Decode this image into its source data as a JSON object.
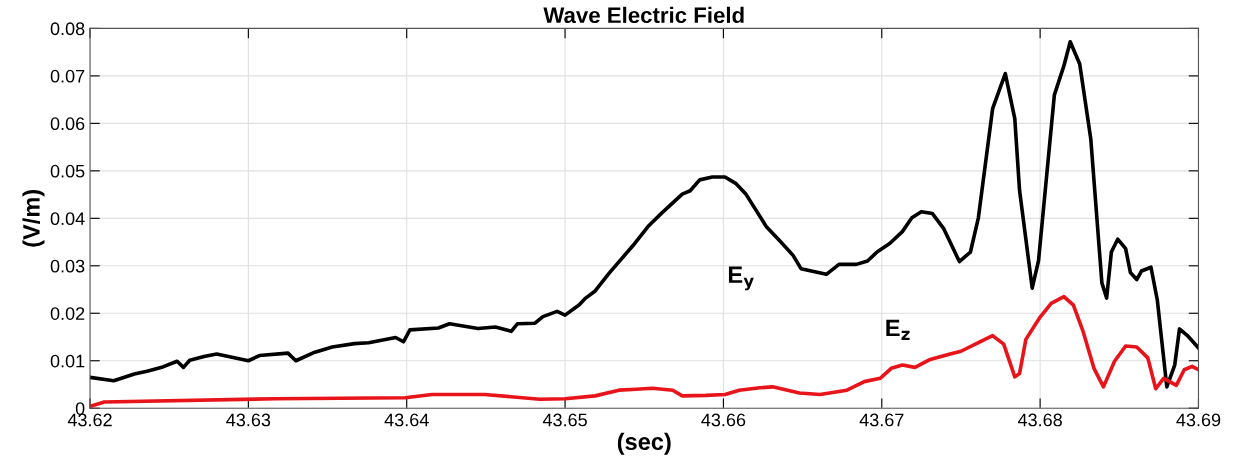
{
  "chart_data": {
    "type": "line",
    "title": "Wave Electric Field",
    "xlabel": "(sec)",
    "ylabel": "(V/m)",
    "xlim": [
      43.62,
      43.69
    ],
    "ylim": [
      0,
      0.08
    ],
    "xticks": [
      43.62,
      43.63,
      43.64,
      43.65,
      43.66,
      43.67,
      43.68,
      43.69
    ],
    "yticks": [
      0,
      0.01,
      0.02,
      0.03,
      0.04,
      0.05,
      0.06,
      0.07,
      0.08
    ],
    "grid": true,
    "legend": false,
    "marker": "none",
    "line_style": "solid",
    "series": [
      {
        "name": "E$_{y}$",
        "color": "#000000",
        "x": [
          43.62,
          43.6215,
          43.6228,
          43.6236,
          43.6246,
          43.6255,
          43.6259,
          43.6263,
          43.6272,
          43.628,
          43.63,
          43.6307,
          43.6325,
          43.633,
          43.6342,
          43.6353,
          43.6367,
          43.6376,
          43.6393,
          43.6398,
          43.6402,
          43.642,
          43.6427,
          43.6445,
          43.6456,
          43.6466,
          43.647,
          43.6481,
          43.6486,
          43.6495,
          43.65,
          43.6509,
          43.6513,
          43.6519,
          43.6528,
          43.6544,
          43.6553,
          43.6561,
          43.6574,
          43.6579,
          43.6585,
          43.6593,
          43.6601,
          43.6608,
          43.6614,
          43.6627,
          43.6636,
          43.6644,
          43.6649,
          43.6657,
          43.6665,
          43.6673,
          43.6684,
          43.6691,
          43.6697,
          43.6705,
          43.6713,
          43.6719,
          43.6725,
          43.6732,
          43.6739,
          43.6749,
          43.6756,
          43.6761,
          43.677,
          43.6778,
          43.6784,
          43.6787,
          43.6795,
          43.6799,
          43.6809,
          43.6815,
          43.6819,
          43.6825,
          43.6832,
          43.6839,
          43.6842,
          43.6845,
          43.6849,
          43.6854,
          43.6857,
          43.6861,
          43.6864,
          43.687,
          43.6874,
          43.688,
          43.6885,
          43.6888,
          43.6893,
          43.69
        ],
        "values": [
          0.0065,
          0.0058,
          0.0072,
          0.0078,
          0.0087,
          0.0099,
          0.0086,
          0.0101,
          0.0109,
          0.0114,
          0.01,
          0.0111,
          0.0116,
          0.01,
          0.0118,
          0.0129,
          0.0136,
          0.0138,
          0.0149,
          0.014,
          0.0165,
          0.0169,
          0.0178,
          0.0168,
          0.0171,
          0.0162,
          0.0178,
          0.0179,
          0.0193,
          0.0204,
          0.0196,
          0.0218,
          0.0232,
          0.0247,
          0.0285,
          0.0347,
          0.0385,
          0.0411,
          0.0451,
          0.0458,
          0.0481,
          0.0487,
          0.0487,
          0.0473,
          0.0452,
          0.0383,
          0.0351,
          0.0322,
          0.0294,
          0.0288,
          0.0282,
          0.0303,
          0.0303,
          0.031,
          0.0329,
          0.0347,
          0.0372,
          0.0401,
          0.0414,
          0.041,
          0.0379,
          0.0309,
          0.0329,
          0.0401,
          0.0631,
          0.0705,
          0.061,
          0.0459,
          0.0253,
          0.0311,
          0.066,
          0.0721,
          0.0772,
          0.0725,
          0.0567,
          0.0264,
          0.0232,
          0.0329,
          0.0356,
          0.0336,
          0.0286,
          0.0271,
          0.0289,
          0.0297,
          0.0228,
          0.0045,
          0.0091,
          0.0167,
          0.0153,
          0.0127
        ]
      },
      {
        "name": "E$_{z}$",
        "color": "#e8141a",
        "x": [
          43.62,
          43.6209,
          43.6317,
          43.6399,
          43.6416,
          43.6449,
          43.6484,
          43.65,
          43.6519,
          43.6534,
          43.6545,
          43.6555,
          43.6568,
          43.6574,
          43.6589,
          43.6601,
          43.661,
          43.6623,
          43.6631,
          43.6648,
          43.6661,
          43.6678,
          43.6689,
          43.6699,
          43.6706,
          43.6713,
          43.6721,
          43.673,
          43.6742,
          43.675,
          43.6761,
          43.677,
          43.6777,
          43.6784,
          43.6787,
          43.6791,
          43.68,
          43.6807,
          43.6815,
          43.6821,
          43.6827,
          43.6834,
          43.684,
          43.6847,
          43.6854,
          43.6861,
          43.6868,
          43.6873,
          43.6878,
          43.6886,
          43.6891,
          43.6896,
          43.69
        ],
        "values": [
          0.0004,
          0.0013,
          0.002,
          0.0022,
          0.0029,
          0.0029,
          0.0019,
          0.002,
          0.0026,
          0.0038,
          0.004,
          0.0042,
          0.0038,
          0.0026,
          0.0027,
          0.0029,
          0.0038,
          0.0043,
          0.0045,
          0.0032,
          0.0029,
          0.0038,
          0.0056,
          0.0063,
          0.0084,
          0.0091,
          0.0086,
          0.0102,
          0.0113,
          0.012,
          0.0138,
          0.0153,
          0.0135,
          0.0066,
          0.0073,
          0.0145,
          0.0192,
          0.0221,
          0.0235,
          0.0217,
          0.0163,
          0.0084,
          0.0045,
          0.0099,
          0.0131,
          0.0129,
          0.0106,
          0.0041,
          0.0063,
          0.0048,
          0.0081,
          0.0088,
          0.0081
        ]
      }
    ]
  }
}
